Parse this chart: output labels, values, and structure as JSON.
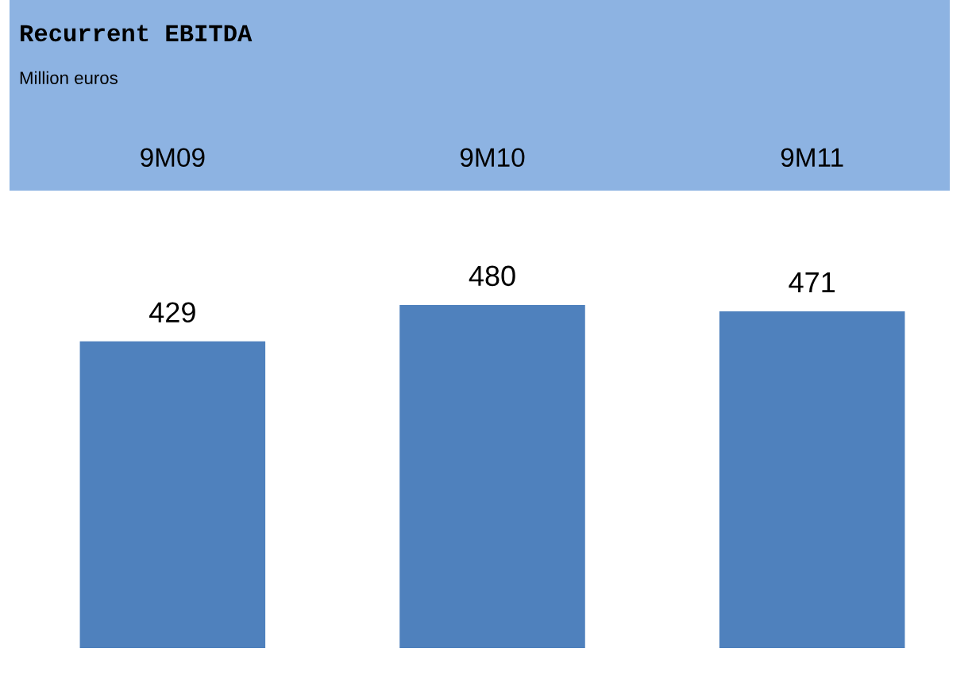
{
  "chart_data": {
    "type": "bar",
    "title": "Recurrent EBITDA",
    "subtitle": "Million euros",
    "categories": [
      "9M09",
      "9M10",
      "9M11"
    ],
    "values": [
      429,
      480,
      471
    ],
    "color": "#4f81bd",
    "data_labels": true,
    "grid": false,
    "legend": false
  }
}
